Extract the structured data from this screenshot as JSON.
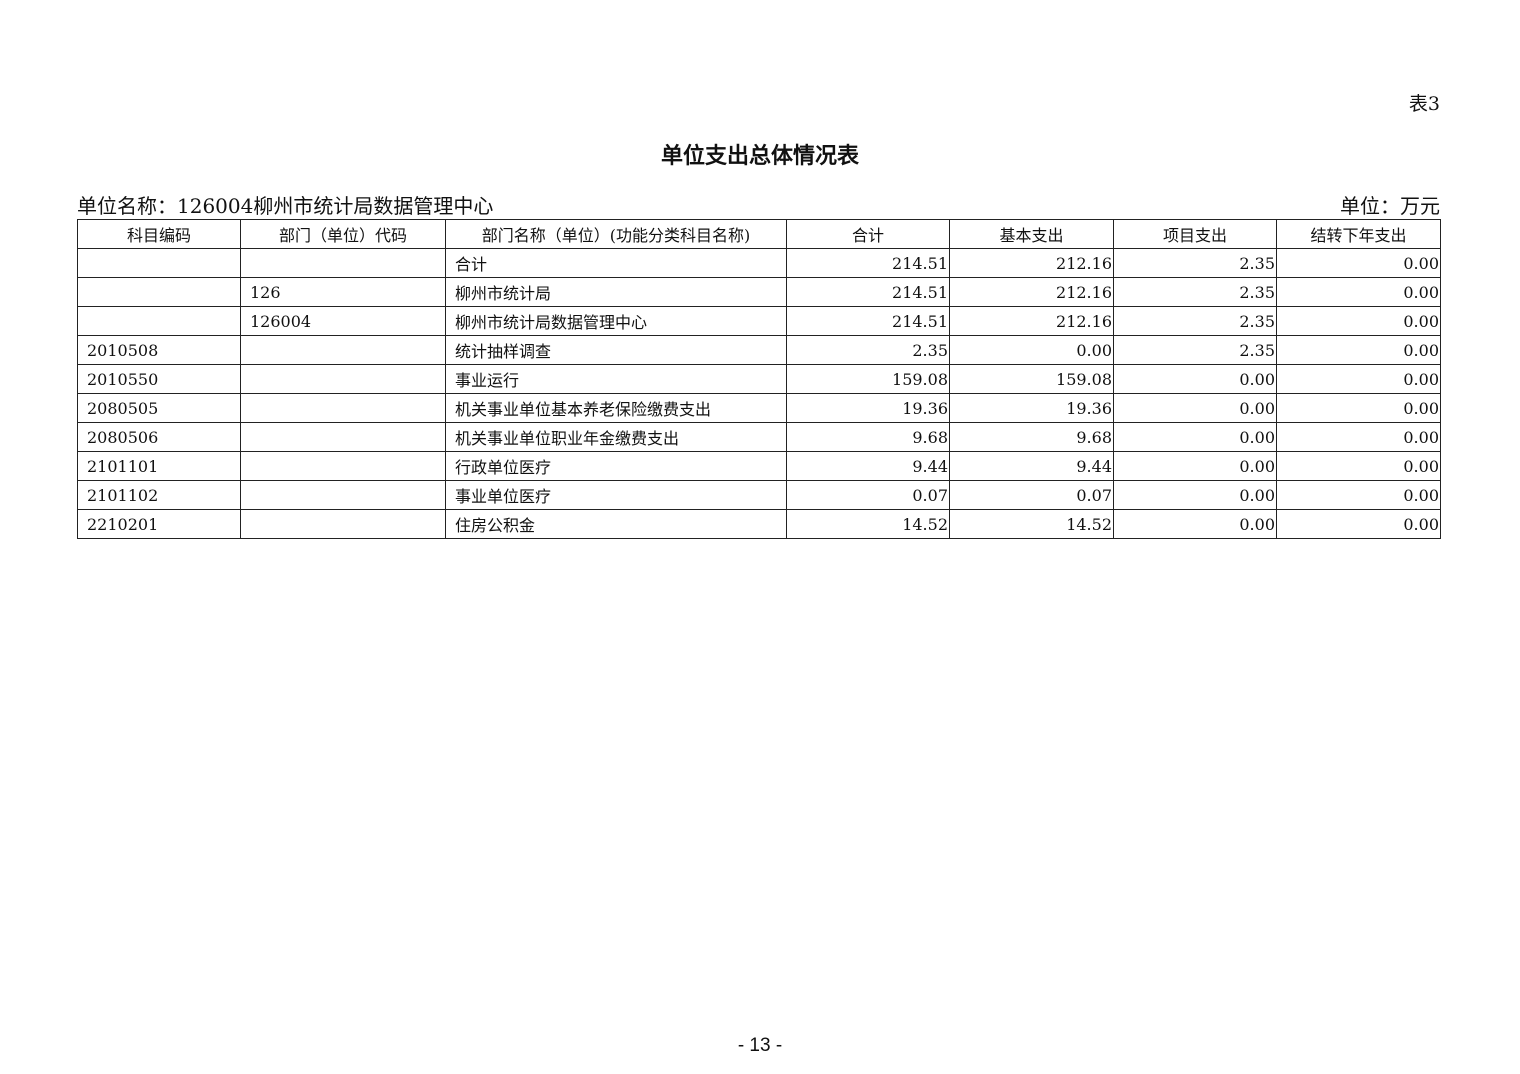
{
  "table_tag": "表3",
  "title": "单位支出总体情况表",
  "unit_name": "单位名称：126004柳州市统计局数据管理中心",
  "unit": "单位：万元",
  "headers": [
    "科目编码",
    "部门（单位）代码",
    "部门名称（单位）(功能分类科目名称)",
    "合计",
    "基本支出",
    "项目支出",
    "结转下年支出"
  ],
  "rows": [
    [
      "",
      "",
      "合计",
      "214.51",
      "212.16",
      "2.35",
      "0.00"
    ],
    [
      "",
      "126",
      "柳州市统计局",
      "214.51",
      "212.16",
      "2.35",
      "0.00"
    ],
    [
      "",
      "126004",
      "柳州市统计局数据管理中心",
      "214.51",
      "212.16",
      "2.35",
      "0.00"
    ],
    [
      "2010508",
      "",
      "统计抽样调查",
      "2.35",
      "0.00",
      "2.35",
      "0.00"
    ],
    [
      "2010550",
      "",
      "事业运行",
      "159.08",
      "159.08",
      "0.00",
      "0.00"
    ],
    [
      "2080505",
      "",
      "机关事业单位基本养老保险缴费支出",
      "19.36",
      "19.36",
      "0.00",
      "0.00"
    ],
    [
      "2080506",
      "",
      "机关事业单位职业年金缴费支出",
      "9.68",
      "9.68",
      "0.00",
      "0.00"
    ],
    [
      "2101101",
      "",
      "行政单位医疗",
      "9.44",
      "9.44",
      "0.00",
      "0.00"
    ],
    [
      "2101102",
      "",
      "事业单位医疗",
      "0.07",
      "0.07",
      "0.00",
      "0.00"
    ],
    [
      "2210201",
      "",
      "住房公积金",
      "14.52",
      "14.52",
      "0.00",
      "0.00"
    ]
  ],
  "page_number": "- 13 -"
}
